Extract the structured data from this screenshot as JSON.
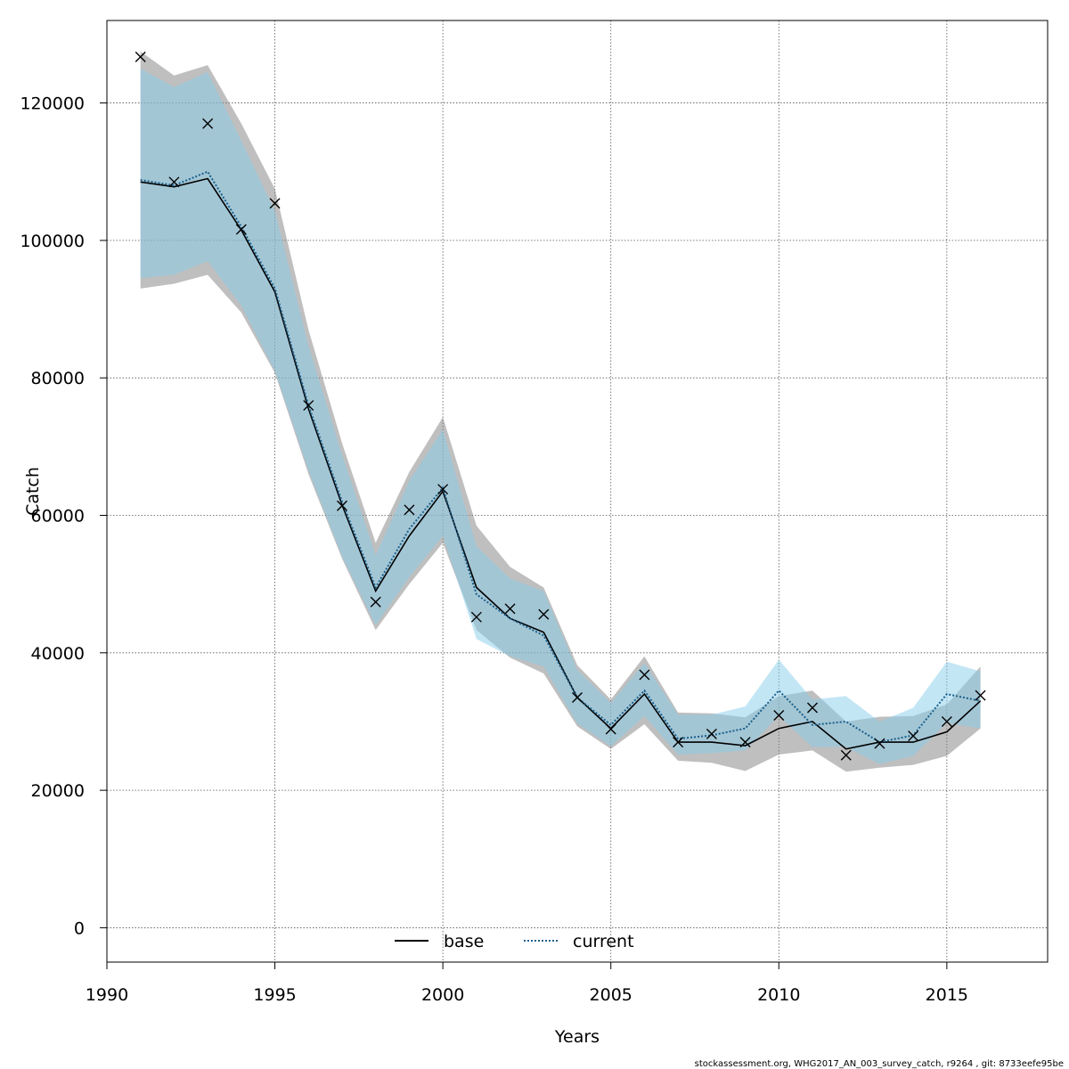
{
  "chart_data": {
    "type": "line",
    "xlabel": "Years",
    "ylabel": "Catch",
    "xlim": [
      1990,
      2018
    ],
    "ylim": [
      -5000,
      132000
    ],
    "xticks": [
      1990,
      1995,
      2000,
      2005,
      2010,
      2015
    ],
    "yticks": [
      0,
      20000,
      40000,
      60000,
      80000,
      100000,
      120000
    ],
    "grid": true,
    "legend_position": "bottom-center",
    "x": [
      1991,
      1992,
      1993,
      1994,
      1995,
      1996,
      1997,
      1998,
      1999,
      2000,
      2001,
      2002,
      2003,
      2004,
      2005,
      2006,
      2007,
      2008,
      2009,
      2010,
      2011,
      2012,
      2013,
      2014,
      2015,
      2016
    ],
    "series": [
      {
        "name": "base",
        "color": "#000000",
        "linestyle": "solid",
        "values": [
          108500,
          107800,
          109000,
          101500,
          92500,
          75500,
          61500,
          49000,
          57000,
          63500,
          49500,
          45000,
          43000,
          33500,
          29000,
          34000,
          27000,
          27000,
          26500,
          29000,
          30000,
          26000,
          27000,
          27000,
          28500,
          33000
        ],
        "lower": [
          93000,
          93700,
          95000,
          89500,
          80700,
          66000,
          53700,
          43300,
          50000,
          56000,
          43300,
          39300,
          37000,
          29300,
          26000,
          29600,
          24300,
          24000,
          22800,
          25200,
          25800,
          22700,
          23300,
          23700,
          25000,
          29000
        ],
        "upper": [
          127500,
          124000,
          125500,
          117000,
          107500,
          87000,
          70500,
          56000,
          66300,
          74300,
          58500,
          52500,
          49500,
          38200,
          33200,
          39500,
          31300,
          31200,
          30600,
          33700,
          34500,
          30000,
          30700,
          30800,
          32500,
          38000
        ]
      },
      {
        "name": "current",
        "color": "#1a5f8a",
        "linestyle": "dotted",
        "values": [
          108800,
          108000,
          110000,
          102000,
          93000,
          76000,
          62000,
          49500,
          58000,
          64000,
          48500,
          45000,
          42500,
          33500,
          29500,
          34500,
          27500,
          28000,
          29000,
          34500,
          29500,
          30000,
          27000,
          28000,
          34000,
          33000
        ],
        "lower": [
          94500,
          95000,
          97000,
          90500,
          81000,
          66500,
          54000,
          44000,
          51000,
          57000,
          42000,
          39500,
          38000,
          29700,
          26400,
          30800,
          25200,
          25400,
          25800,
          30800,
          26300,
          26300,
          23800,
          25000,
          29800,
          29000
        ],
        "upper": [
          125000,
          122300,
          124500,
          114500,
          104300,
          84700,
          68800,
          54200,
          65000,
          72500,
          55500,
          50800,
          49000,
          37500,
          32700,
          38500,
          31000,
          31000,
          32200,
          39000,
          33200,
          33700,
          30000,
          32000,
          38700,
          37300
        ]
      }
    ],
    "observed": {
      "marker": "x",
      "values": [
        126700,
        108500,
        117000,
        101600,
        105400,
        76000,
        61400,
        47400,
        60800,
        63800,
        45200,
        46400,
        45600,
        33500,
        28900,
        36800,
        27000,
        28200,
        27000,
        30900,
        32000,
        25100,
        26800,
        27900,
        30000,
        33800
      ]
    }
  },
  "footer": "stockassessment.org, WHG2017_AN_003_survey_catch, r9264 , git: 8733eefe95be"
}
